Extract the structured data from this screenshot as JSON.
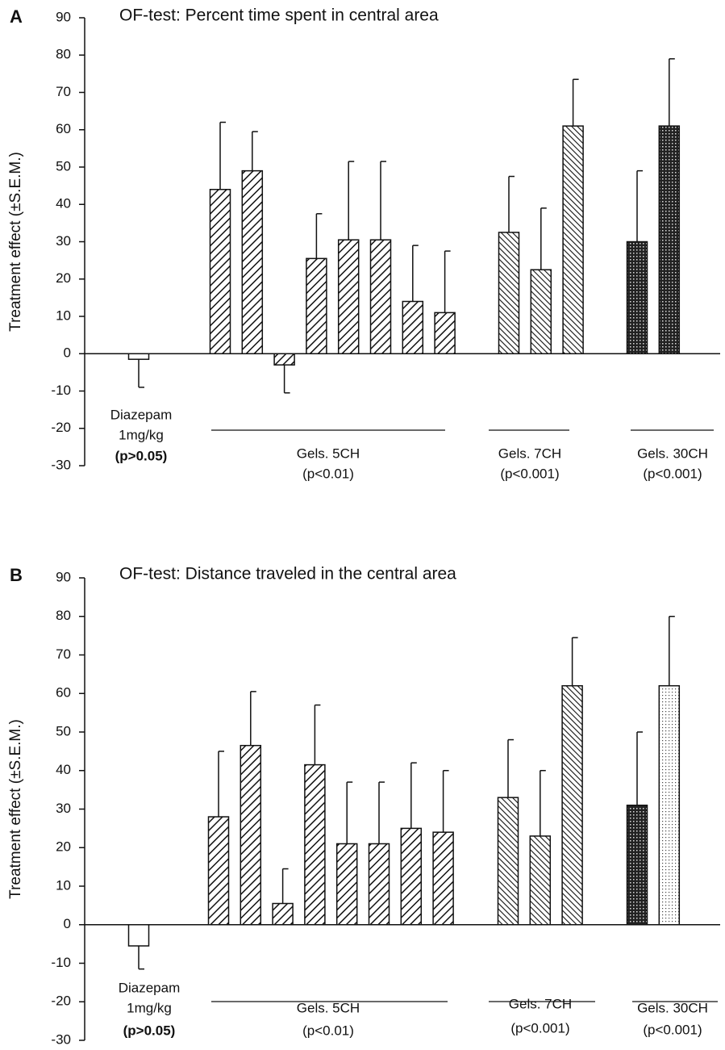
{
  "chart_data": [
    {
      "type": "bar",
      "panel": "A",
      "title": "OF-test: Percent time spent in central area",
      "ylabel": "Treatment effect (±S.E.M.)",
      "ylim": [
        -30,
        90
      ],
      "yticks": [
        -30,
        -20,
        -10,
        0,
        10,
        20,
        30,
        40,
        50,
        60,
        70,
        80,
        90
      ],
      "groups": [
        {
          "label": [
            "Diazepam",
            "1mg/kg"
          ],
          "p": "(p>0.05)",
          "pattern": "none",
          "values": [
            -1.5
          ],
          "errors": [
            7.5
          ]
        },
        {
          "label": [
            "Gels. 5CH"
          ],
          "p": "(p<0.01)",
          "pattern": "diag",
          "values": [
            44,
            49,
            -3,
            25.5,
            30.5,
            30.5,
            14,
            11
          ],
          "errors": [
            18,
            10.5,
            7.5,
            12,
            21,
            21,
            15,
            16.5
          ]
        },
        {
          "label": [
            "Gels. 7CH"
          ],
          "p": "(p<0.001)",
          "pattern": "diag-back",
          "values": [
            32.5,
            22.5,
            61
          ],
          "errors": [
            15,
            16.5,
            12.5
          ]
        },
        {
          "label": [
            "Gels. 30CH"
          ],
          "p": "(p<0.001)",
          "pattern": "cross",
          "values": [
            30,
            61
          ],
          "errors": [
            19,
            18
          ]
        }
      ]
    },
    {
      "type": "bar",
      "panel": "B",
      "title": "OF-test: Distance traveled in the central area",
      "ylabel": "Treatment effect (±S.E.M.)",
      "ylim": [
        -30,
        90
      ],
      "yticks": [
        -30,
        -20,
        -10,
        0,
        10,
        20,
        30,
        40,
        50,
        60,
        70,
        80,
        90
      ],
      "groups": [
        {
          "label": [
            "Diazepam",
            "1mg/kg"
          ],
          "p": "(p>0.05)",
          "pattern": "none",
          "values": [
            -5.5
          ],
          "errors": [
            6
          ]
        },
        {
          "label": [
            "Gels. 5CH"
          ],
          "p": "(p<0.01)",
          "pattern": "diag",
          "values": [
            28,
            46.5,
            5.5,
            41.5,
            21,
            21,
            25,
            24
          ],
          "errors": [
            17,
            14,
            9,
            15.5,
            16,
            16,
            17,
            16
          ]
        },
        {
          "label": [
            "Gels. 7CH"
          ],
          "p": "(p<0.001)",
          "pattern": "diag-back",
          "values": [
            33,
            23,
            62
          ],
          "errors": [
            15,
            17,
            12.5
          ]
        },
        {
          "label": [
            "Gels. 30CH"
          ],
          "p": "(p<0.001)",
          "pattern": [
            "cross",
            "dots"
          ],
          "values": [
            31,
            62
          ],
          "errors": [
            19,
            18
          ]
        }
      ]
    }
  ]
}
